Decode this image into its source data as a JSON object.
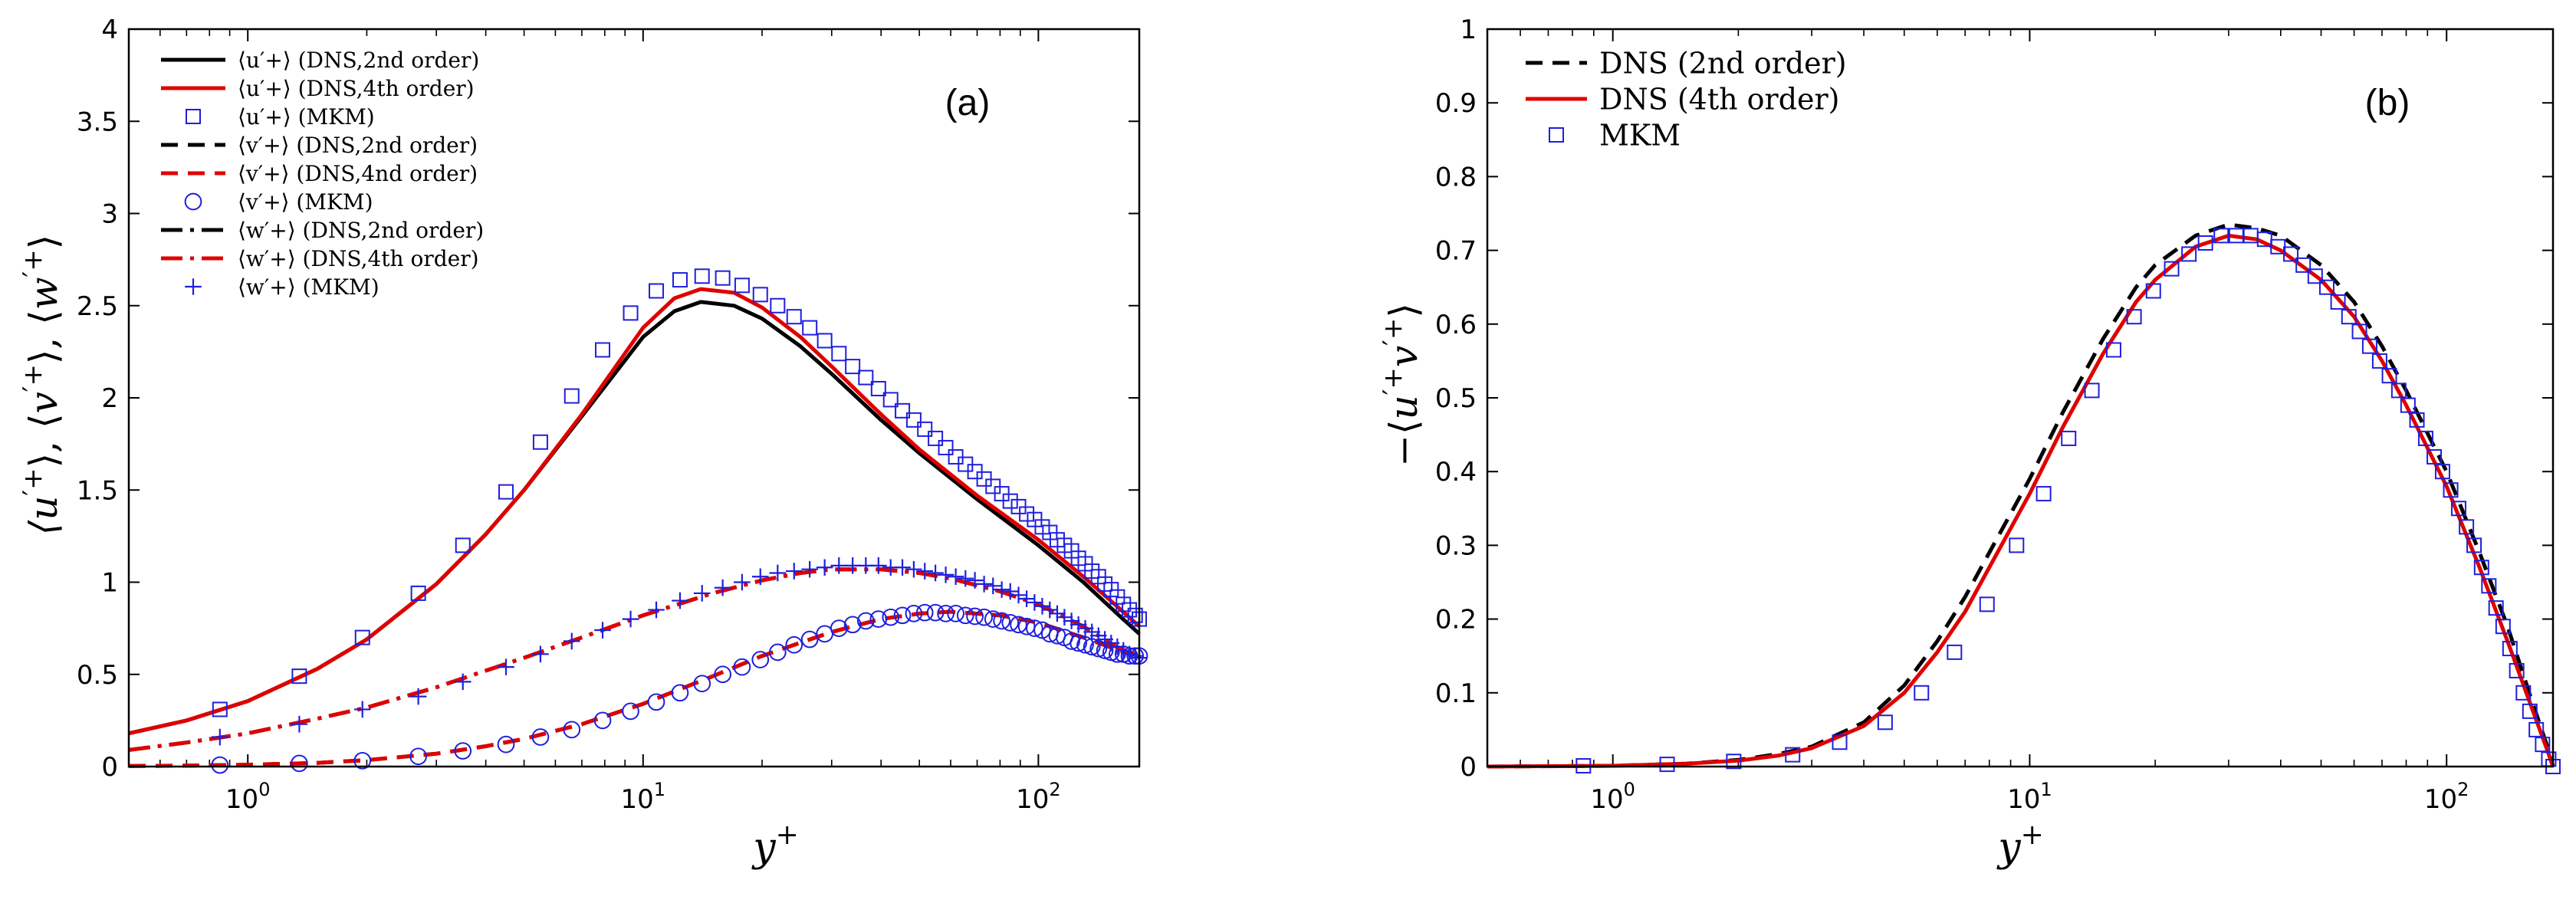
{
  "chart_data": [
    {
      "panel": "(a)",
      "type": "line",
      "xscale": "log",
      "xlim": [
        0.5,
        180
      ],
      "ylim": [
        0,
        4
      ],
      "yticks": [
        "0",
        "0.5",
        "1",
        "1.5",
        "2",
        "2.5",
        "3",
        "3.5",
        "4"
      ],
      "ytick_values": [
        0,
        0.5,
        1,
        1.5,
        2,
        2.5,
        3,
        3.5,
        4
      ],
      "xticks": [
        {
          "base": "10",
          "exp": "0",
          "value": 1
        },
        {
          "base": "10",
          "exp": "1",
          "value": 10
        },
        {
          "base": "10",
          "exp": "2",
          "value": 100
        }
      ],
      "xlabel": "y+",
      "ylabel": "⟨u′+⟩, ⟨v′+⟩, ⟨w′+⟩",
      "legend_position": "top-left",
      "series": [
        {
          "name": "⟨u′+⟩ (DNS,2nd order)",
          "color": "#000000",
          "dash": "solid",
          "marker": "none",
          "x": [
            0.5,
            0.7,
            1,
            1.5,
            2,
            3,
            4,
            5,
            7,
            10,
            12,
            14,
            17,
            20,
            25,
            30,
            40,
            50,
            70,
            100,
            130,
            160,
            180
          ],
          "y": [
            0.18,
            0.25,
            0.355,
            0.53,
            0.69,
            0.99,
            1.26,
            1.5,
            1.9,
            2.33,
            2.47,
            2.52,
            2.5,
            2.43,
            2.28,
            2.13,
            1.88,
            1.7,
            1.45,
            1.2,
            1.0,
            0.82,
            0.72
          ]
        },
        {
          "name": "⟨u′+⟩ (DNS,4th order)",
          "color": "#e00000",
          "dash": "solid",
          "marker": "none",
          "x": [
            0.5,
            0.7,
            1,
            1.5,
            2,
            3,
            4,
            5,
            7,
            10,
            12,
            14,
            17,
            20,
            25,
            30,
            40,
            50,
            70,
            100,
            130,
            160,
            180
          ],
          "y": [
            0.18,
            0.25,
            0.355,
            0.53,
            0.69,
            0.99,
            1.26,
            1.5,
            1.91,
            2.38,
            2.54,
            2.59,
            2.57,
            2.49,
            2.33,
            2.17,
            1.91,
            1.72,
            1.47,
            1.23,
            1.03,
            0.86,
            0.76
          ]
        },
        {
          "name": "⟨u′+⟩ (MKM)",
          "color": "#1f1fdd",
          "dash": "none",
          "marker": "square",
          "x": [
            0.85,
            1.35,
            1.95,
            2.7,
            3.5,
            4.5,
            5.5,
            6.6,
            7.9,
            9.3,
            10.8,
            12.4,
            14.1,
            15.9,
            17.8,
            19.8,
            21.9,
            24.1,
            26.4,
            28.8,
            31.3,
            33.9,
            36.6,
            39.4,
            42.3,
            45.3,
            48.4,
            51.6,
            54.9,
            58.3,
            61.8,
            65.4,
            69.1,
            72.9,
            76.8,
            80.8,
            84.9,
            89.1,
            93.4,
            97.8,
            102.3,
            106.9,
            111.6,
            116.4,
            121.3,
            126.3,
            131.4,
            136.6,
            141.9,
            147.3,
            152.8,
            158.4,
            164.1,
            169.9,
            175.8,
            180
          ],
          "y": [
            0.31,
            0.49,
            0.7,
            0.94,
            1.2,
            1.49,
            1.76,
            2.01,
            2.26,
            2.46,
            2.58,
            2.64,
            2.66,
            2.65,
            2.61,
            2.56,
            2.5,
            2.44,
            2.38,
            2.31,
            2.24,
            2.17,
            2.11,
            2.05,
            1.99,
            1.93,
            1.88,
            1.83,
            1.78,
            1.73,
            1.68,
            1.64,
            1.6,
            1.56,
            1.52,
            1.48,
            1.44,
            1.41,
            1.37,
            1.34,
            1.3,
            1.27,
            1.23,
            1.2,
            1.17,
            1.13,
            1.1,
            1.06,
            1.03,
            0.99,
            0.96,
            0.92,
            0.88,
            0.85,
            0.82,
            0.8
          ]
        },
        {
          "name": "⟨v′+⟩ (DNS,2nd order)",
          "color": "#000000",
          "dash": "dashed",
          "marker": "none",
          "x": [
            0.5,
            0.7,
            1,
            1.5,
            2,
            3,
            4,
            5,
            7,
            10,
            15,
            20,
            30,
            40,
            50,
            60,
            80,
            100,
            130,
            160,
            180
          ],
          "y": [
            0.003,
            0.005,
            0.01,
            0.02,
            0.035,
            0.07,
            0.11,
            0.15,
            0.23,
            0.34,
            0.49,
            0.6,
            0.73,
            0.8,
            0.83,
            0.84,
            0.82,
            0.78,
            0.7,
            0.63,
            0.6
          ]
        },
        {
          "name": "⟨v′+⟩ (DNS,4nd order)",
          "color": "#e00000",
          "dash": "dashed",
          "marker": "none",
          "x": [
            0.5,
            0.7,
            1,
            1.5,
            2,
            3,
            4,
            5,
            7,
            10,
            15,
            20,
            30,
            40,
            50,
            60,
            80,
            100,
            130,
            160,
            180
          ],
          "y": [
            0.003,
            0.005,
            0.01,
            0.02,
            0.035,
            0.07,
            0.11,
            0.15,
            0.23,
            0.34,
            0.49,
            0.6,
            0.73,
            0.8,
            0.83,
            0.84,
            0.82,
            0.78,
            0.7,
            0.63,
            0.6
          ]
        },
        {
          "name": "⟨v′+⟩ (MKM)",
          "color": "#1f1fdd",
          "dash": "none",
          "marker": "circle",
          "x": [
            0.85,
            1.35,
            1.95,
            2.7,
            3.5,
            4.5,
            5.5,
            6.6,
            7.9,
            9.3,
            10.8,
            12.4,
            14.1,
            15.9,
            17.8,
            19.8,
            21.9,
            24.1,
            26.4,
            28.8,
            31.3,
            33.9,
            36.6,
            39.4,
            42.3,
            45.3,
            48.4,
            51.6,
            54.9,
            58.3,
            61.8,
            65.4,
            69.1,
            72.9,
            76.8,
            80.8,
            84.9,
            89.1,
            93.4,
            97.8,
            102.3,
            106.9,
            111.6,
            116.4,
            121.3,
            126.3,
            131.4,
            136.6,
            141.9,
            147.3,
            152.8,
            158.4,
            164.1,
            169.9,
            175.8,
            180
          ],
          "y": [
            0.008,
            0.017,
            0.032,
            0.055,
            0.085,
            0.12,
            0.16,
            0.2,
            0.25,
            0.3,
            0.35,
            0.4,
            0.45,
            0.5,
            0.54,
            0.58,
            0.62,
            0.66,
            0.69,
            0.72,
            0.75,
            0.77,
            0.79,
            0.8,
            0.81,
            0.82,
            0.83,
            0.835,
            0.835,
            0.83,
            0.83,
            0.82,
            0.815,
            0.81,
            0.8,
            0.79,
            0.78,
            0.77,
            0.76,
            0.75,
            0.74,
            0.72,
            0.71,
            0.7,
            0.68,
            0.67,
            0.66,
            0.65,
            0.64,
            0.63,
            0.62,
            0.61,
            0.61,
            0.6,
            0.6,
            0.6
          ]
        },
        {
          "name": "⟨w′+⟩ (DNS,2nd order)",
          "color": "#000000",
          "dash": "dashdot",
          "marker": "none",
          "x": [
            0.5,
            0.7,
            1,
            1.5,
            2,
            3,
            4,
            5,
            7,
            10,
            15,
            20,
            25,
            30,
            40,
            50,
            60,
            80,
            100,
            130,
            160,
            180
          ],
          "y": [
            0.09,
            0.13,
            0.18,
            0.26,
            0.32,
            0.43,
            0.52,
            0.59,
            0.7,
            0.82,
            0.94,
            1.01,
            1.05,
            1.07,
            1.07,
            1.05,
            1.02,
            0.95,
            0.88,
            0.76,
            0.64,
            0.6
          ]
        },
        {
          "name": "⟨w′+⟩ (DNS,4th order)",
          "color": "#e00000",
          "dash": "dashdot",
          "marker": "none",
          "x": [
            0.5,
            0.7,
            1,
            1.5,
            2,
            3,
            4,
            5,
            7,
            10,
            15,
            20,
            25,
            30,
            40,
            50,
            60,
            80,
            100,
            130,
            160,
            180
          ],
          "y": [
            0.09,
            0.13,
            0.18,
            0.26,
            0.32,
            0.43,
            0.52,
            0.59,
            0.7,
            0.82,
            0.94,
            1.01,
            1.05,
            1.07,
            1.07,
            1.05,
            1.02,
            0.95,
            0.88,
            0.76,
            0.64,
            0.6
          ]
        },
        {
          "name": "⟨w′+⟩ (MKM)",
          "color": "#1f1fdd",
          "dash": "none",
          "marker": "plus",
          "x": [
            0.85,
            1.35,
            1.95,
            2.7,
            3.5,
            4.5,
            5.5,
            6.6,
            7.9,
            9.3,
            10.8,
            12.4,
            14.1,
            15.9,
            17.8,
            19.8,
            21.9,
            24.1,
            26.4,
            28.8,
            31.3,
            33.9,
            36.6,
            39.4,
            42.3,
            45.3,
            48.4,
            51.6,
            54.9,
            58.3,
            61.8,
            65.4,
            69.1,
            72.9,
            76.8,
            80.8,
            84.9,
            89.1,
            93.4,
            97.8,
            102.3,
            106.9,
            111.6,
            116.4,
            121.3,
            126.3,
            131.4,
            136.6,
            141.9,
            147.3,
            152.8,
            158.4,
            164.1,
            169.9,
            175.8,
            180
          ],
          "y": [
            0.16,
            0.23,
            0.31,
            0.38,
            0.46,
            0.54,
            0.61,
            0.68,
            0.74,
            0.8,
            0.85,
            0.9,
            0.94,
            0.97,
            1.0,
            1.03,
            1.05,
            1.06,
            1.07,
            1.08,
            1.09,
            1.09,
            1.09,
            1.09,
            1.08,
            1.08,
            1.07,
            1.06,
            1.05,
            1.04,
            1.03,
            1.02,
            1.01,
            0.99,
            0.98,
            0.96,
            0.95,
            0.93,
            0.91,
            0.89,
            0.87,
            0.85,
            0.83,
            0.81,
            0.79,
            0.77,
            0.75,
            0.73,
            0.71,
            0.69,
            0.67,
            0.65,
            0.63,
            0.61,
            0.6,
            0.59
          ]
        }
      ]
    },
    {
      "panel": "(b)",
      "type": "line",
      "xscale": "log",
      "xlim": [
        0.5,
        180
      ],
      "ylim": [
        0,
        1
      ],
      "yticks": [
        "0",
        "0.1",
        "0.2",
        "0.3",
        "0.4",
        "0.5",
        "0.6",
        "0.7",
        "0.8",
        "0.9",
        "1"
      ],
      "ytick_values": [
        0,
        0.1,
        0.2,
        0.3,
        0.4,
        0.5,
        0.6,
        0.7,
        0.8,
        0.9,
        1
      ],
      "xticks": [
        {
          "base": "10",
          "exp": "0",
          "value": 1
        },
        {
          "base": "10",
          "exp": "1",
          "value": 10
        },
        {
          "base": "10",
          "exp": "2",
          "value": 100
        }
      ],
      "xlabel": "y+",
      "ylabel": "−⟨u′+v′+⟩",
      "legend_position": "top-left",
      "series": [
        {
          "name": "DNS (2nd order)",
          "color": "#000000",
          "dash": "dashed",
          "marker": "none",
          "x": [
            0.5,
            1,
            1.5,
            2,
            2.5,
            3,
            4,
            5,
            6,
            7,
            8,
            10,
            12,
            15,
            18,
            20,
            25,
            30,
            35,
            40,
            50,
            60,
            70,
            80,
            100,
            120,
            140,
            160,
            175,
            180
          ],
          "y": [
            0,
            0.001,
            0.004,
            0.009,
            0.017,
            0.027,
            0.06,
            0.11,
            0.17,
            0.23,
            0.29,
            0.39,
            0.48,
            0.58,
            0.65,
            0.68,
            0.72,
            0.735,
            0.73,
            0.72,
            0.68,
            0.63,
            0.57,
            0.51,
            0.4,
            0.29,
            0.19,
            0.09,
            0.025,
            0
          ]
        },
        {
          "name": "DNS (4th order)",
          "color": "#e00000",
          "dash": "solid",
          "marker": "none",
          "x": [
            0.5,
            1,
            1.5,
            2,
            2.5,
            3,
            4,
            5,
            6,
            7,
            8,
            10,
            12,
            15,
            18,
            20,
            25,
            30,
            35,
            40,
            50,
            60,
            70,
            80,
            100,
            120,
            140,
            160,
            175,
            180
          ],
          "y": [
            0,
            0.001,
            0.004,
            0.008,
            0.015,
            0.025,
            0.055,
            0.1,
            0.155,
            0.21,
            0.27,
            0.37,
            0.46,
            0.56,
            0.63,
            0.66,
            0.705,
            0.72,
            0.715,
            0.7,
            0.66,
            0.61,
            0.55,
            0.49,
            0.38,
            0.27,
            0.17,
            0.08,
            0.02,
            0
          ]
        },
        {
          "name": "MKM",
          "color": "#1f1fdd",
          "dash": "none",
          "marker": "square",
          "x": [
            0.85,
            1.35,
            1.95,
            2.7,
            3.5,
            4.5,
            5.5,
            6.6,
            7.9,
            9.3,
            10.8,
            12.4,
            14.1,
            15.9,
            17.8,
            19.8,
            21.9,
            24.1,
            26.4,
            28.8,
            31.3,
            33.9,
            36.6,
            39.4,
            42.3,
            45.3,
            48.4,
            51.6,
            54.9,
            58.3,
            61.8,
            65.4,
            69.1,
            72.9,
            76.8,
            80.8,
            84.9,
            89.1,
            93.4,
            97.8,
            102.3,
            106.9,
            111.6,
            116.4,
            121.3,
            126.3,
            131.4,
            136.6,
            141.9,
            147.3,
            152.8,
            158.4,
            164.1,
            169.9,
            175.8,
            180
          ],
          "y": [
            0.001,
            0.003,
            0.007,
            0.016,
            0.033,
            0.06,
            0.1,
            0.155,
            0.22,
            0.3,
            0.37,
            0.445,
            0.51,
            0.565,
            0.61,
            0.645,
            0.675,
            0.695,
            0.71,
            0.72,
            0.72,
            0.72,
            0.715,
            0.705,
            0.695,
            0.68,
            0.665,
            0.65,
            0.63,
            0.61,
            0.59,
            0.57,
            0.55,
            0.53,
            0.51,
            0.49,
            0.47,
            0.445,
            0.42,
            0.4,
            0.375,
            0.35,
            0.325,
            0.3,
            0.27,
            0.245,
            0.215,
            0.19,
            0.16,
            0.13,
            0.1,
            0.075,
            0.05,
            0.03,
            0.01,
            0
          ]
        }
      ]
    }
  ]
}
